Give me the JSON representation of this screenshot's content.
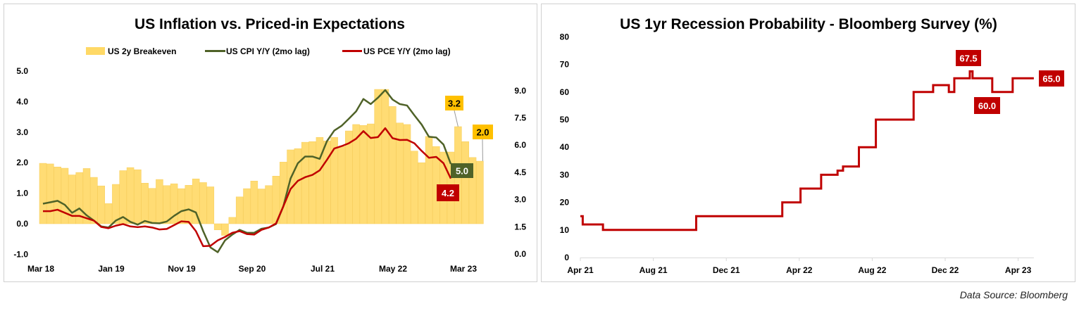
{
  "colors": {
    "breakeven": "#FFD966",
    "breakeven_edge": "#F6C84A",
    "cpi": "#4F6228",
    "pce": "#C00000",
    "label_yellow": "#FFC000",
    "recession": "#C00000"
  },
  "source": "Data Source: Bloomberg",
  "chart_data": [
    {
      "type": "bar+line",
      "title": "US Inflation vs. Priced-in Expectations",
      "legend": [
        "US 2y Breakeven",
        "US CPI Y/Y (2mo lag)",
        "US PCE Y/Y (2mo lag)"
      ],
      "legend_position": "top",
      "x_tick_labels": [
        "Mar 18",
        "Jan 19",
        "Nov 19",
        "Sep 20",
        "Jul 21",
        "May 22",
        "Mar 23"
      ],
      "y_left": {
        "ticks": [
          "5.0",
          "4.0",
          "3.0",
          "2.0",
          "1.0",
          "0.0",
          "-1.0"
        ],
        "range": [
          -1,
          5
        ]
      },
      "y_right": {
        "ticks": [
          "9.0",
          "7.5",
          "6.0",
          "4.5",
          "3.0",
          "1.5",
          "0.0"
        ],
        "range": [
          0,
          9
        ]
      },
      "series": [
        {
          "name": "US 2y Breakeven",
          "axis": "left",
          "type": "bar",
          "values": [
            1.98,
            1.96,
            1.86,
            1.82,
            1.6,
            1.68,
            1.81,
            1.52,
            1.24,
            0.66,
            1.29,
            1.74,
            1.84,
            1.77,
            1.33,
            1.16,
            1.45,
            1.25,
            1.31,
            1.15,
            1.26,
            1.47,
            1.35,
            1.21,
            -0.2,
            -0.38,
            0.21,
            0.88,
            1.15,
            1.4,
            1.14,
            1.25,
            1.56,
            2.02,
            2.42,
            2.46,
            2.67,
            2.69,
            2.83,
            2.71,
            2.83,
            2.53,
            3.04,
            3.25,
            3.22,
            3.27,
            4.4,
            4.4,
            3.84,
            3.3,
            3.25,
            2.38,
            2.0,
            2.86,
            2.53,
            2.35,
            2.35,
            3.18,
            2.69,
            2.17,
            2.05
          ]
        },
        {
          "name": "US CPI Y/Y (2mo lag)",
          "axis": "right",
          "type": "line",
          "values": [
            2.77,
            2.85,
            2.93,
            2.71,
            2.27,
            2.51,
            2.13,
            1.84,
            1.52,
            1.46,
            1.84,
            2.04,
            1.77,
            1.62,
            1.82,
            1.71,
            1.69,
            1.79,
            2.1,
            2.36,
            2.46,
            2.29,
            1.26,
            0.36,
            0.1,
            0.75,
            1.07,
            1.33,
            1.17,
            1.17,
            1.39,
            1.46,
            1.65,
            2.62,
            4.16,
            5.0,
            5.37,
            5.37,
            5.24,
            6.22,
            6.8,
            7.06,
            7.45,
            7.86,
            8.54,
            8.26,
            8.61,
            9.03,
            8.51,
            8.26,
            8.18,
            7.64,
            7.13,
            6.46,
            6.42,
            6.03,
            4.96
          ]
        },
        {
          "name": "US PCE Y/Y (2mo lag)",
          "axis": "right",
          "type": "line",
          "values": [
            2.36,
            2.36,
            2.44,
            2.27,
            2.1,
            2.1,
            1.97,
            1.84,
            1.49,
            1.42,
            1.56,
            1.65,
            1.52,
            1.48,
            1.52,
            1.46,
            1.35,
            1.38,
            1.59,
            1.8,
            1.77,
            1.26,
            0.43,
            0.45,
            0.75,
            0.94,
            1.17,
            1.26,
            1.1,
            1.07,
            1.33,
            1.46,
            1.68,
            2.62,
            3.58,
            4.03,
            4.23,
            4.36,
            4.61,
            5.19,
            5.81,
            5.94,
            6.1,
            6.35,
            6.77,
            6.39,
            6.44,
            6.93,
            6.38,
            6.28,
            6.29,
            6.1,
            5.68,
            5.3,
            5.35,
            5.0,
            4.16
          ]
        }
      ],
      "annotations": [
        {
          "text": "3.2",
          "series": "US 2y Breakeven"
        },
        {
          "text": "2.0",
          "series": "US 2y Breakeven"
        },
        {
          "text": "5.0",
          "series": "US CPI Y/Y (2mo lag)"
        },
        {
          "text": "4.2",
          "series": "US PCE Y/Y (2mo lag)"
        }
      ]
    },
    {
      "type": "line",
      "title": "US 1yr Recession Probability - Bloomberg Survey (%)",
      "x_tick_labels": [
        "Apr 21",
        "Aug 21",
        "Dec 21",
        "Apr 22",
        "Aug 22",
        "Dec 22",
        "Apr 23"
      ],
      "x_unit": "months since Apr 21",
      "y": {
        "ticks": [
          "80",
          "70",
          "60",
          "50",
          "40",
          "30",
          "20",
          "10",
          "0"
        ],
        "range": [
          0,
          80
        ]
      },
      "step_points": [
        [
          0,
          15
        ],
        [
          0.13,
          12
        ],
        [
          1.24,
          10
        ],
        [
          6.35,
          15
        ],
        [
          11.07,
          20
        ],
        [
          12.07,
          25
        ],
        [
          13.2,
          30
        ],
        [
          14.1,
          31.5
        ],
        [
          14.4,
          33
        ],
        [
          15.27,
          40
        ],
        [
          16.2,
          50
        ],
        [
          18.27,
          60
        ],
        [
          19.34,
          62.5
        ],
        [
          20.2,
          60
        ],
        [
          20.5,
          65
        ],
        [
          21.35,
          67.5
        ],
        [
          21.5,
          65
        ],
        [
          22.58,
          60
        ],
        [
          23.7,
          65
        ],
        [
          24.86,
          65
        ]
      ],
      "annotations": [
        {
          "text": "67.5"
        },
        {
          "text": "60.0"
        },
        {
          "text": "65.0"
        }
      ]
    }
  ]
}
